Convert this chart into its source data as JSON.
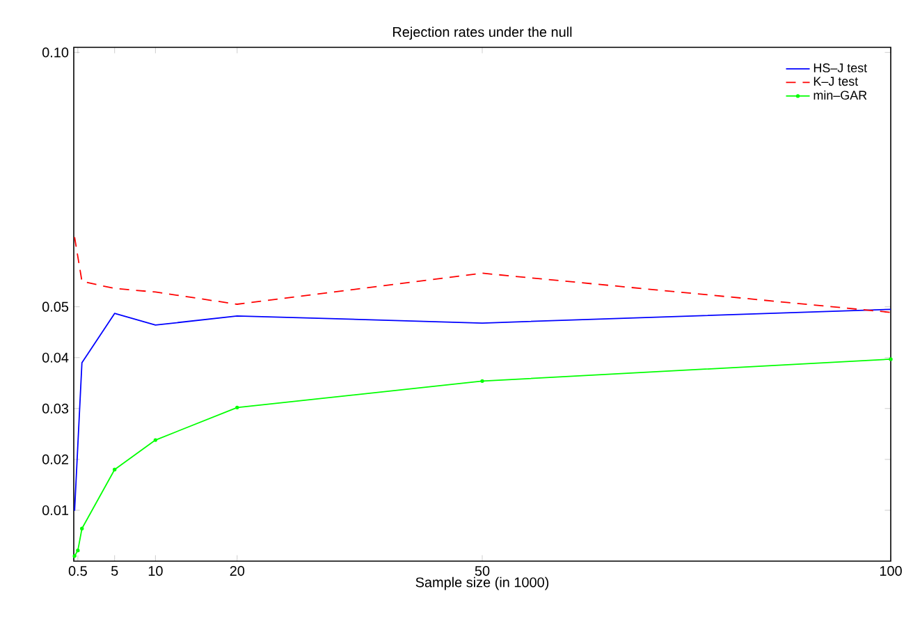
{
  "chart_data": {
    "type": "line",
    "title": "Rejection rates under the null",
    "xlabel": "Sample size (in 1000)",
    "xlim": [
      0,
      100
    ],
    "xticks": [
      0.5,
      5,
      10,
      20,
      50,
      100
    ],
    "ylim": [
      0,
      0.101
    ],
    "yticks": [
      0.01,
      0.02,
      0.03,
      0.04,
      0.05,
      {
        "value": 0.1,
        "label": "0.10"
      }
    ],
    "series": [
      {
        "name": "HS–J test",
        "color": "#0000ff",
        "line_style": "solid",
        "marker": "none",
        "x": [
          0.1,
          1,
          5,
          10,
          20,
          50,
          100
        ],
        "values": [
          0.0099,
          0.039,
          0.0487,
          0.0464,
          0.0482,
          0.0468,
          0.0495
        ]
      },
      {
        "name": "K–J test",
        "color": "#ff0000",
        "line_style": "dashed",
        "marker": "none",
        "x": [
          0.1,
          1,
          5,
          10,
          20,
          50,
          100
        ],
        "values": [
          0.0637,
          0.055,
          0.0536,
          0.0529,
          0.0505,
          0.0566,
          0.0489
        ]
      },
      {
        "name": "min–GAR",
        "color": "#00ff00",
        "line_style": "solid",
        "marker": "circle",
        "x": [
          0.1,
          0.5,
          1,
          5,
          10,
          20,
          50,
          100
        ],
        "values": [
          0.001,
          0.0021,
          0.0064,
          0.018,
          0.0238,
          0.0302,
          0.0354,
          0.0397
        ]
      }
    ],
    "grid": false,
    "legend": "top right"
  }
}
